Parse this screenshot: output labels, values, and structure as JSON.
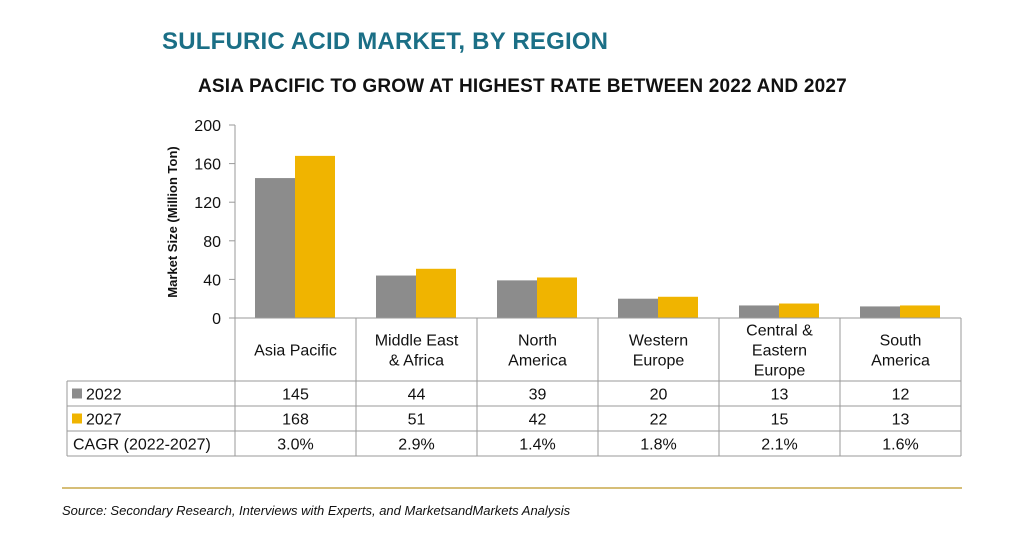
{
  "title": "SULFURIC ACID MARKET, BY REGION",
  "subtitle": "ASIA PACIFIC TO GROW AT HIGHEST RATE BETWEEN 2022 AND 2027",
  "source": "Source: Secondary Research, Interviews with Experts, and MarketsandMarkets Analysis",
  "colors": {
    "s2022": "#8c8c8c",
    "s2027": "#f0b400",
    "title": "#1b6f86",
    "rule": "#c8a84a",
    "grid": "#999999"
  },
  "chart_data": {
    "type": "bar",
    "title": "SULFURIC ACID MARKET, BY REGION",
    "subtitle": "ASIA PACIFIC TO GROW AT HIGHEST RATE BETWEEN 2022 AND 2027",
    "ylabel": "Market Size (Million Ton)",
    "xlabel": "",
    "ylim": [
      0,
      200
    ],
    "yticks": [
      0,
      40,
      80,
      120,
      160,
      200
    ],
    "categories": [
      [
        "Asia Pacific"
      ],
      [
        "Middle East",
        "& Africa"
      ],
      [
        "North",
        "America"
      ],
      [
        "Western",
        "Europe"
      ],
      [
        "Central &",
        "Eastern",
        "Europe"
      ],
      [
        "South",
        "America"
      ]
    ],
    "series": [
      {
        "name": "2022",
        "values": [
          145,
          44,
          39,
          20,
          13,
          12
        ],
        "color": "#8c8c8c"
      },
      {
        "name": "2027",
        "values": [
          168,
          51,
          42,
          22,
          15,
          13
        ],
        "color": "#f0b400"
      }
    ],
    "table_rows": [
      {
        "label": "2022",
        "swatch": "#8c8c8c",
        "cells": [
          "145",
          "44",
          "39",
          "20",
          "13",
          "12"
        ]
      },
      {
        "label": "2027",
        "swatch": "#f0b400",
        "cells": [
          "168",
          "51",
          "42",
          "22",
          "15",
          "13"
        ]
      },
      {
        "label": "CAGR (2022-2027)",
        "swatch": null,
        "cells": [
          "3.0%",
          "2.9%",
          "1.4%",
          "1.8%",
          "2.1%",
          "1.6%"
        ]
      }
    ],
    "grid": false,
    "legend": "data table rows"
  }
}
